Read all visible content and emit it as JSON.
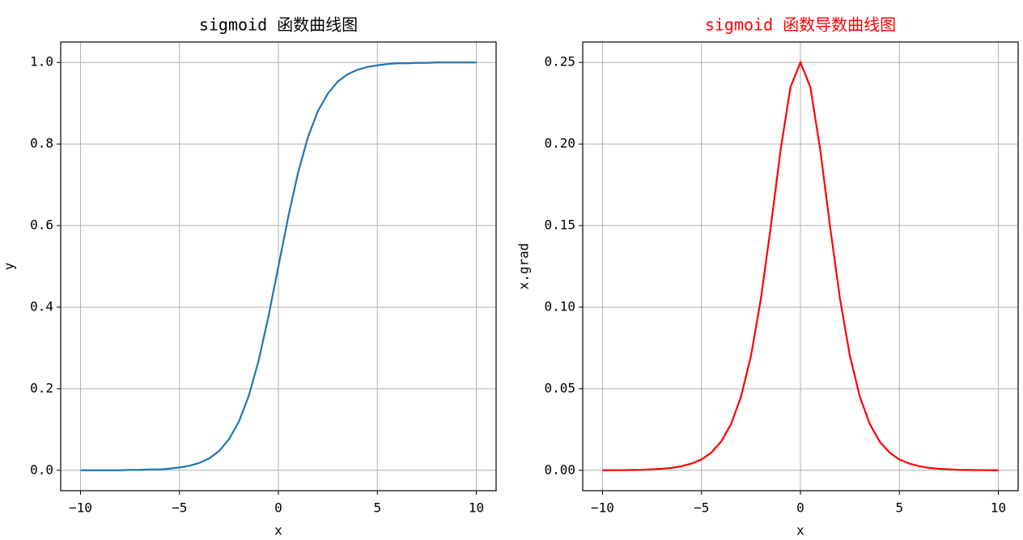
{
  "chart_data": [
    {
      "type": "line",
      "title": "sigmoid 函数曲线图",
      "title_color": "#000000",
      "xlabel": "x",
      "ylabel": "y",
      "x": [
        -10,
        -9.5,
        -9,
        -8.5,
        -8,
        -7.5,
        -7,
        -6.5,
        -6,
        -5.5,
        -5,
        -4.5,
        -4,
        -3.5,
        -3,
        -2.5,
        -2,
        -1.5,
        -1,
        -0.5,
        0,
        0.5,
        1,
        1.5,
        2,
        2.5,
        3,
        3.5,
        4,
        4.5,
        5,
        5.5,
        6,
        6.5,
        7,
        7.5,
        8,
        8.5,
        9,
        9.5,
        10
      ],
      "values": [
        0,
        0,
        0,
        0,
        0,
        0.001,
        0.001,
        0.002,
        0.002,
        0.004,
        0.007,
        0.011,
        0.018,
        0.029,
        0.047,
        0.076,
        0.119,
        0.182,
        0.269,
        0.378,
        0.5,
        0.622,
        0.731,
        0.818,
        0.881,
        0.924,
        0.953,
        0.971,
        0.982,
        0.989,
        0.993,
        0.996,
        0.998,
        0.998,
        0.999,
        0.999,
        1,
        1,
        1,
        1,
        1
      ],
      "color": "#1f77b4",
      "grid": true,
      "xlim": [
        -11,
        11
      ],
      "xticks": [
        {
          "value": -10,
          "label": "−10"
        },
        {
          "value": -5,
          "label": "−5"
        },
        0,
        5,
        10
      ],
      "ylim": [
        -0.05,
        1.05
      ],
      "yticks": [
        {
          "value": 0,
          "label": "0.0"
        },
        0.2,
        0.4,
        0.6,
        0.8,
        {
          "value": 1,
          "label": "1.0"
        }
      ]
    },
    {
      "type": "line",
      "title": "sigmoid 函数导数曲线图",
      "title_color": "#ff0000",
      "xlabel": "x",
      "ylabel": "x.grad",
      "x": [
        -10,
        -9.5,
        -9,
        -8.5,
        -8,
        -7.5,
        -7,
        -6.5,
        -6,
        -5.5,
        -5,
        -4.5,
        -4,
        -3.5,
        -3,
        -2.5,
        -2,
        -1.5,
        -1,
        -0.5,
        0,
        0.5,
        1,
        1.5,
        2,
        2.5,
        3,
        3.5,
        4,
        4.5,
        5,
        5.5,
        6,
        6.5,
        7,
        7.5,
        8,
        8.5,
        9,
        9.5,
        10
      ],
      "values": [
        0,
        0.0001,
        0.0001,
        0.0002,
        0.0003,
        0.0006,
        0.0009,
        0.0015,
        0.0025,
        0.0041,
        0.0066,
        0.0109,
        0.0177,
        0.0285,
        0.0452,
        0.0701,
        0.105,
        0.1491,
        0.1966,
        0.235,
        0.25,
        0.235,
        0.1966,
        0.1491,
        0.105,
        0.0701,
        0.0452,
        0.0285,
        0.0177,
        0.0109,
        0.0066,
        0.0041,
        0.0025,
        0.0015,
        0.0009,
        0.0006,
        0.0003,
        0.0002,
        0.0001,
        0.0001,
        0
      ],
      "color": "#ff0000",
      "grid": true,
      "xlim": [
        -11,
        11
      ],
      "xticks": [
        {
          "value": -10,
          "label": "−10"
        },
        {
          "value": -5,
          "label": "−5"
        },
        0,
        5,
        10
      ],
      "ylim": [
        -0.0125,
        0.2625
      ],
      "yticks": [
        {
          "value": 0,
          "label": "0.00"
        },
        {
          "value": 0.05,
          "label": "0.05"
        },
        {
          "value": 0.1,
          "label": "0.10"
        },
        {
          "value": 0.15,
          "label": "0.15"
        },
        {
          "value": 0.2,
          "label": "0.20"
        },
        {
          "value": 0.25,
          "label": "0.25"
        }
      ]
    }
  ]
}
